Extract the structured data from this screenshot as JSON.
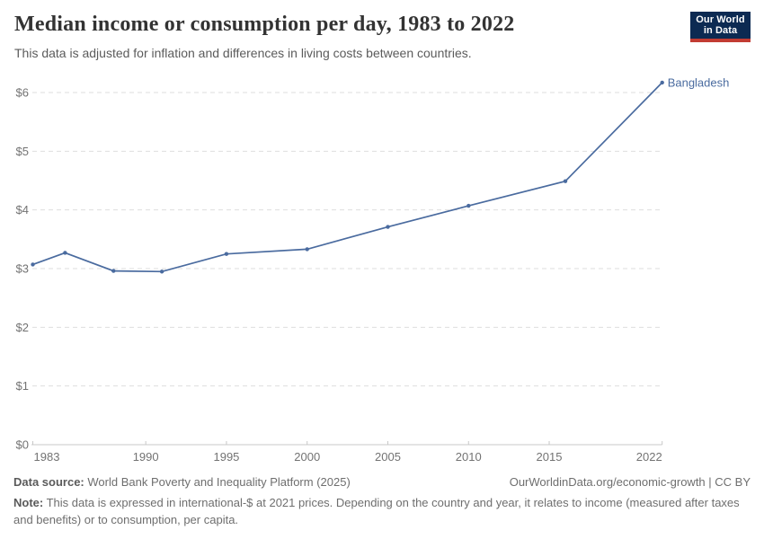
{
  "header": {
    "title": "Median income or consumption per day, 1983 to 2022",
    "subtitle": "This data is adjusted for inflation and differences in living costs between countries.",
    "logo": {
      "line1": "Our World",
      "line2": "in Data"
    }
  },
  "chart_data": {
    "type": "line",
    "title": "Median income or consumption per day, 1983 to 2022",
    "subtitle": "This data is adjusted for inflation and differences in living costs between countries.",
    "xlabel": "",
    "ylabel": "",
    "xlim": [
      1983,
      2022
    ],
    "ylim": [
      0,
      6.5
    ],
    "grid": "horizontal-dashed",
    "legend": "end-of-line entity label",
    "x_ticks": [
      1983,
      1990,
      1995,
      2000,
      2005,
      2010,
      2015,
      2022
    ],
    "y_ticks": [
      {
        "value": 0,
        "label": "$0"
      },
      {
        "value": 1,
        "label": "$1"
      },
      {
        "value": 2,
        "label": "$2"
      },
      {
        "value": 3,
        "label": "$3"
      },
      {
        "value": 4,
        "label": "$4"
      },
      {
        "value": 5,
        "label": "$5"
      },
      {
        "value": 6,
        "label": "$6"
      }
    ],
    "series": [
      {
        "name": "Bangladesh",
        "color": "#4a6b9f",
        "x": [
          1983,
          1985,
          1988,
          1991,
          1995,
          2000,
          2005,
          2010,
          2016,
          2022
        ],
        "values": [
          3.07,
          3.27,
          2.96,
          2.95,
          3.25,
          3.33,
          3.71,
          4.07,
          4.49,
          6.17
        ]
      }
    ]
  },
  "footer": {
    "datasource_label": "Data source:",
    "datasource_text": "World Bank Poverty and Inequality Platform (2025)",
    "attribution": "OurWorldinData.org/economic-growth | CC BY",
    "note_label": "Note:",
    "note_text": "This data is expressed in international-$ at 2021 prices. Depending on the country and year, it relates to income (measured after taxes and benefits) or to consumption, per capita."
  },
  "colors": {
    "line": "#4a6b9f",
    "entity_label": "#4a6b9f",
    "logo_bg": "#0c2a52",
    "logo_accent": "#c23c33",
    "grid": "#dedede",
    "axis": "#c8c8c8",
    "tick_text": "#737373"
  }
}
